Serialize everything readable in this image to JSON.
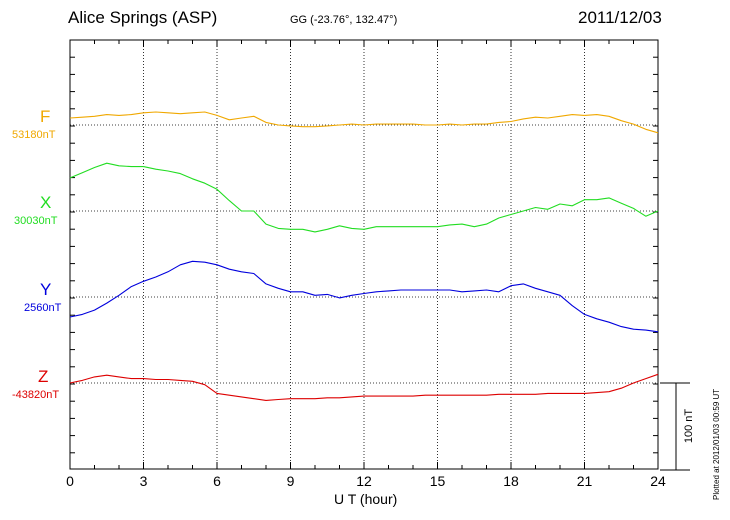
{
  "station": "Alice Springs (ASP)",
  "coords": "GG (-23.76°, 132.47°)",
  "date": "2011/12/03",
  "plotted": "Plotted at 2012/01/03 00:59 UT",
  "scale_label": "100 nT",
  "components": [
    {
      "letter": "F",
      "baseline": "53180nT",
      "color": "#f0a800"
    },
    {
      "letter": "X",
      "baseline": "30030nT",
      "color": "#22dd22"
    },
    {
      "letter": "Y",
      "baseline": "2560nT",
      "color": "#0000dd"
    },
    {
      "letter": "Z",
      "baseline": "-43820nT",
      "color": "#dd0000"
    }
  ],
  "chart_data": {
    "type": "line",
    "title": "Alice Springs (ASP)",
    "xlabel": "U T (hour)",
    "xlim": [
      0,
      24
    ],
    "xticks": [
      "0",
      "3",
      "6",
      "9",
      "12",
      "15",
      "18",
      "21",
      "24"
    ],
    "grid": true,
    "units": "nT",
    "scale_bar_nT": 100,
    "x": [
      0,
      0.5,
      1,
      1.5,
      2,
      2.5,
      3,
      3.5,
      4,
      4.5,
      5,
      5.5,
      6,
      6.5,
      7,
      7.5,
      8,
      8.5,
      9,
      9.5,
      10,
      10.5,
      11,
      11.5,
      12,
      12.5,
      13,
      13.5,
      14,
      14.5,
      15,
      15.5,
      16,
      16.5,
      17,
      17.5,
      18,
      18.5,
      19,
      19.5,
      20,
      20.5,
      21,
      21.5,
      22,
      22.5,
      23,
      23.5,
      24
    ],
    "series": [
      {
        "name": "F",
        "baseline_nT": 53180,
        "color": "#f0a800",
        "values": [
          53188,
          53189,
          53190,
          53192,
          53191,
          53192,
          53194,
          53195,
          53194,
          53193,
          53194,
          53195,
          53191,
          53186,
          53188,
          53190,
          53183,
          53180,
          53179,
          53178,
          53178,
          53179,
          53180,
          53181,
          53180,
          53181,
          53181,
          53181,
          53181,
          53180,
          53180,
          53181,
          53180,
          53181,
          53181,
          53183,
          53184,
          53187,
          53189,
          53188,
          53190,
          53192,
          53191,
          53192,
          53190,
          53185,
          53181,
          53175,
          53171
        ]
      },
      {
        "name": "X",
        "baseline_nT": 30030,
        "color": "#22dd22",
        "values": [
          30068,
          30074,
          30080,
          30085,
          30082,
          30081,
          30081,
          30078,
          30076,
          30073,
          30067,
          30062,
          30055,
          30042,
          30030,
          30030,
          30015,
          30010,
          30009,
          30009,
          30006,
          30009,
          30013,
          30010,
          30009,
          30012,
          30012,
          30012,
          30012,
          30012,
          30012,
          30014,
          30015,
          30012,
          30015,
          30022,
          30026,
          30030,
          30034,
          30032,
          30038,
          30036,
          30043,
          30043,
          30045,
          30039,
          30033,
          30024,
          30030
        ]
      },
      {
        "name": "Y",
        "baseline_nT": 2560,
        "color": "#0000dd",
        "values": [
          2537,
          2540,
          2545,
          2553,
          2562,
          2572,
          2578,
          2583,
          2589,
          2597,
          2601,
          2600,
          2597,
          2592,
          2589,
          2587,
          2575,
          2570,
          2566,
          2566,
          2562,
          2563,
          2559,
          2562,
          2564,
          2566,
          2567,
          2568,
          2568,
          2568,
          2568,
          2568,
          2566,
          2567,
          2568,
          2566,
          2573,
          2575,
          2570,
          2566,
          2562,
          2550,
          2540,
          2535,
          2531,
          2526,
          2523,
          2522,
          2520
        ]
      },
      {
        "name": "Z",
        "baseline_nT": -43820,
        "color": "#dd0000",
        "values": [
          -43820,
          -43817,
          -43813,
          -43811,
          -43813,
          -43815,
          -43815,
          -43816,
          -43816,
          -43817,
          -43818,
          -43822,
          -43832,
          -43834,
          -43836,
          -43838,
          -43840,
          -43839,
          -43838,
          -43838,
          -43838,
          -43837,
          -43837,
          -43836,
          -43835,
          -43835,
          -43835,
          -43835,
          -43835,
          -43834,
          -43834,
          -43834,
          -43834,
          -43834,
          -43834,
          -43833,
          -43833,
          -43833,
          -43833,
          -43832,
          -43832,
          -43832,
          -43832,
          -43831,
          -43830,
          -43826,
          -43820,
          -43815,
          -43810
        ]
      }
    ]
  }
}
